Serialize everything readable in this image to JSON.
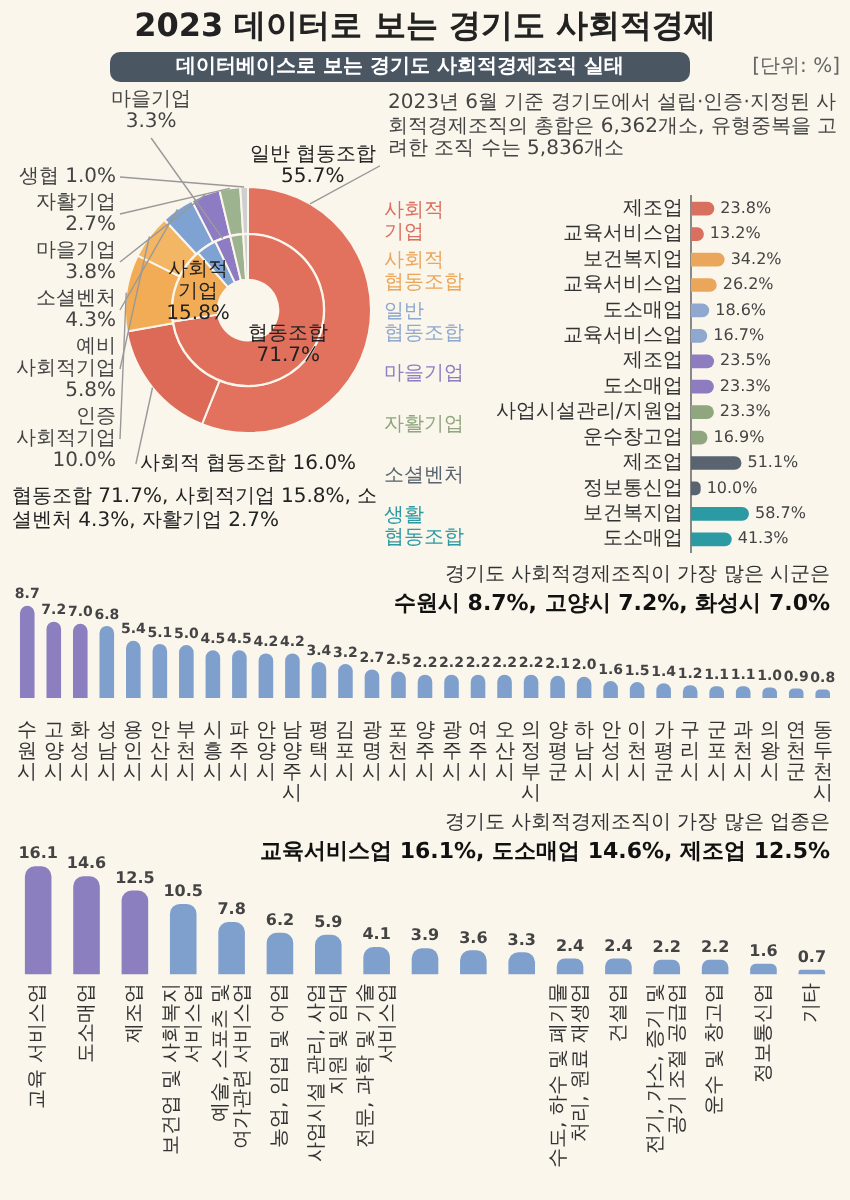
{
  "chart_data": [
    {
      "type": "donut",
      "title": "2023 데이터로 보는 경기도 사회적경제",
      "subtitle": "데이터베이스로 보는 경기도 사회적경제조직 실태",
      "annotations": [
        "[단위: %]",
        "2023년 6월 기준 경기도에서 설립·인증·지정된 사회적경제조직의 총합은 6,362개소, 유형중복을 고려한 조직 수는 5,836개소",
        "협동조합 71.7%, 사회적기업 15.8%, 소셜벤처 4.3%, 자활기업 2.7%"
      ],
      "categories": [
        "일반 협동조합",
        "사회적 협동조합",
        "인증 사회적기업",
        "예비 사회적기업",
        "소셜벤처",
        "마을기업",
        "자활기업",
        "생협"
      ],
      "values": [
        55.7,
        16.0,
        10.0,
        5.8,
        4.3,
        3.8,
        2.7,
        1.0
      ],
      "colors": [
        "#e2715d",
        "#dd6a57",
        "#f1ac55",
        "#f3b665",
        "#7ea2d2",
        "#8d7cc4",
        "#9db28e",
        "#cfcfcf"
      ],
      "value_labels": [
        "55.7%",
        "16.0%",
        "10.0%",
        "5.8%",
        "4.3%",
        "3.8%",
        "2.7%",
        "1.0%"
      ]
    },
    {
      "type": "donut",
      "categories": [
        "협동조합",
        "사회적 기업",
        null,
        "마을기업",
        null,
        null
      ],
      "values": [
        71.7,
        15.8,
        4.3,
        3.3,
        2.7,
        1.0
      ],
      "colors": [
        "#e0705c",
        "#f1ac55",
        "#7ea2d2",
        "#8d7cc4",
        "#9db28e",
        "#cfcfcf"
      ],
      "value_labels": [
        "71.7%",
        "15.8%",
        null,
        "3.3%",
        null,
        null
      ]
    },
    {
      "type": "bar",
      "orientation": "horizontal",
      "tick_labels": "y",
      "categories": [
        "제조업",
        "교육서비스업",
        "보건복지업",
        "교육서비스업",
        "도소매업",
        "교육서비스업",
        "제조업",
        "도소매업",
        "사업시설관리/지원업",
        "운수창고업",
        "제조업",
        "정보통신업",
        "보건복지업",
        "도소매업"
      ],
      "series": [
        {
          "name": "사회적기업",
          "color": "#d9705f",
          "values": [
            23.8,
            13.2,
            null,
            null,
            null,
            null,
            null,
            null,
            null,
            null,
            null,
            null,
            null,
            null
          ],
          "value_labels": [
            "23.8%",
            "13.2%",
            null,
            null,
            null,
            null,
            null,
            null,
            null,
            null,
            null,
            null,
            null,
            null
          ]
        },
        {
          "name": "사회적협동조합",
          "color": "#eaa65a",
          "values": [
            null,
            null,
            34.2,
            26.2,
            null,
            null,
            null,
            null,
            null,
            null,
            null,
            null,
            null,
            null
          ],
          "value_labels": [
            null,
            null,
            "34.2%",
            "26.2%",
            null,
            null,
            null,
            null,
            null,
            null,
            null,
            null,
            null,
            null
          ]
        },
        {
          "name": "일반협동조합",
          "color": "#8fa8cf",
          "values": [
            null,
            null,
            null,
            null,
            18.6,
            16.7,
            null,
            null,
            null,
            null,
            null,
            null,
            null,
            null
          ],
          "value_labels": [
            null,
            null,
            null,
            null,
            "18.6%",
            "16.7%",
            null,
            null,
            null,
            null,
            null,
            null,
            null,
            null
          ]
        },
        {
          "name": "마을기업",
          "color": "#8d7cc0",
          "values": [
            null,
            null,
            null,
            null,
            null,
            null,
            23.5,
            23.3,
            null,
            null,
            null,
            null,
            null,
            null
          ],
          "value_labels": [
            null,
            null,
            null,
            null,
            null,
            null,
            "23.5%",
            "23.3%",
            null,
            null,
            null,
            null,
            null,
            null
          ]
        },
        {
          "name": "자활기업",
          "color": "#8fa67e",
          "values": [
            null,
            null,
            null,
            null,
            null,
            null,
            null,
            null,
            23.3,
            16.9,
            null,
            null,
            null,
            null
          ],
          "value_labels": [
            null,
            null,
            null,
            null,
            null,
            null,
            null,
            null,
            "23.3%",
            "16.9%",
            null,
            null,
            null,
            null
          ]
        },
        {
          "name": "소셜벤처",
          "color": "#5a6470",
          "values": [
            null,
            null,
            null,
            null,
            null,
            null,
            null,
            null,
            null,
            null,
            51.1,
            10.0,
            null,
            null
          ],
          "value_labels": [
            null,
            null,
            null,
            null,
            null,
            null,
            null,
            null,
            null,
            null,
            "51.1%",
            "10.0%",
            null,
            null
          ]
        },
        {
          "name": "생활협동조합",
          "color": "#2b9aa3",
          "values": [
            null,
            null,
            null,
            null,
            null,
            null,
            null,
            null,
            null,
            null,
            null,
            null,
            58.7,
            41.3
          ],
          "value_labels": [
            null,
            null,
            null,
            null,
            null,
            null,
            null,
            null,
            null,
            null,
            null,
            null,
            "58.7%",
            "41.3%"
          ]
        }
      ]
    },
    {
      "type": "bar",
      "title": "경기도 사회적경제조직이 가장 많은 시군은",
      "subtitle": "수원시 8.7%, 고양시 7.2%, 화성시 7.0%",
      "tick_labels": "x",
      "categories": [
        "수원시",
        "고양시",
        "화성시",
        "성남시",
        "용인시",
        "안산시",
        "부천시",
        "시흥시",
        "파주시",
        "안양시",
        "남양주시",
        "평택시",
        "김포시",
        "광명시",
        "포천시",
        "양주시",
        "광주시",
        "여주시",
        "오산시",
        "의정부시",
        "양평군",
        "하남시",
        "안성시",
        "이천시",
        "가평군",
        "구리시",
        "군포시",
        "과천시",
        "의왕시",
        "연천군",
        "동두천시"
      ],
      "values": [
        8.7,
        7.2,
        7.0,
        6.8,
        5.4,
        5.1,
        5.0,
        4.5,
        4.5,
        4.2,
        4.2,
        3.4,
        3.2,
        2.7,
        2.5,
        2.2,
        2.2,
        2.2,
        2.2,
        2.2,
        2.1,
        2.0,
        1.6,
        1.5,
        1.4,
        1.2,
        1.1,
        1.1,
        1.0,
        0.9,
        0.8
      ],
      "value_labels": [
        "8.7",
        "7.2",
        "7.0",
        "6.8",
        "5.4",
        "5.1",
        "5.0",
        "4.5",
        "4.5",
        "4.2",
        "4.2",
        "3.4",
        "3.2",
        "2.7",
        "2.5",
        "2.2",
        "2.2",
        "2.2",
        "2.2",
        "2.2",
        "2.1",
        "2.0",
        "1.6",
        "1.5",
        "1.4",
        "1.2",
        "1.1",
        "1.1",
        "1.0",
        "0.9",
        "0.8"
      ],
      "colors": [
        "#8b7fc0",
        "#8b7fc0",
        "#8b7fc0",
        "#7f9fcc",
        "#7f9fcc",
        "#7f9fcc",
        "#7f9fcc",
        "#7f9fcc",
        "#7f9fcc",
        "#7f9fcc",
        "#7f9fcc",
        "#7f9fcc",
        "#7f9fcc",
        "#7f9fcc",
        "#7f9fcc",
        "#7f9fcc",
        "#7f9fcc",
        "#7f9fcc",
        "#7f9fcc",
        "#7f9fcc",
        "#7f9fcc",
        "#7f9fcc",
        "#7f9fcc",
        "#7f9fcc",
        "#7f9fcc",
        "#7f9fcc",
        "#7f9fcc",
        "#7f9fcc",
        "#7f9fcc",
        "#7f9fcc",
        "#7f9fcc"
      ]
    },
    {
      "type": "bar",
      "title": "경기도 사회적경제조직이 가장 많은 업종은",
      "subtitle": "교육서비스업 16.1%, 도소매업 14.6%, 제조업 12.5%",
      "tick_labels": "x",
      "categories": [
        "교육 서비스업",
        "도소매업",
        "제조업",
        "보건업 및 사회복지 서비스업",
        "예술, 스포츠 및 여가관련 서비스업",
        "농업, 임업 및 어업",
        "사업시설 관리, 사업 지원 및 임대",
        "전문, 과학 및 기술 서비스업",
        null,
        null,
        null,
        "수도, 하수 및 폐기물 처리, 원료 재생업",
        "건설업",
        "전기, 가스, 증기 및 공기 조절 공급업",
        "운수 및 창고업",
        "정보통신업",
        "기타"
      ],
      "values": [
        16.1,
        14.6,
        12.5,
        10.5,
        7.8,
        6.2,
        5.9,
        4.1,
        3.9,
        3.6,
        3.3,
        2.4,
        2.4,
        2.2,
        2.2,
        1.6,
        0.7
      ],
      "value_labels": [
        "16.1",
        "14.6",
        "12.5",
        "10.5",
        "7.8",
        "6.2",
        "5.9",
        "4.1",
        "3.9",
        "3.6",
        "3.3",
        "2.4",
        "2.4",
        "2.2",
        "2.2",
        "1.6",
        "0.7"
      ],
      "colors": [
        "#8b7fc0",
        "#8b7fc0",
        "#8b7fc0",
        "#7f9fcc",
        "#7f9fcc",
        "#7f9fcc",
        "#7f9fcc",
        "#7f9fcc",
        "#7f9fcc",
        "#7f9fcc",
        "#7f9fcc",
        "#7f9fcc",
        "#7f9fcc",
        "#7f9fcc",
        "#7f9fcc",
        "#7f9fcc",
        "#7f9fcc"
      ]
    }
  ]
}
